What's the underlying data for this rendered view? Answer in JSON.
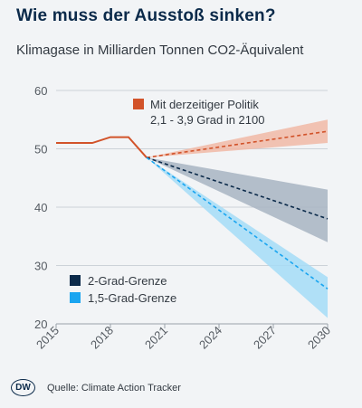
{
  "header": {
    "title": "Wie muss der Ausstoß sinken?",
    "subtitle": "Klimagase in Milliarden Tonnen CO2-Äquivalent"
  },
  "footer": {
    "logo_text": "DW",
    "source": "Quelle: Climate Action Tracker"
  },
  "chart_data": {
    "type": "line",
    "xlim": [
      2015,
      2030
    ],
    "ylim": [
      20,
      60
    ],
    "x_ticks": [
      "2015",
      "2018",
      "2021",
      "2024",
      "2027",
      "2030"
    ],
    "y_ticks": [
      "20",
      "30",
      "40",
      "50",
      "60"
    ],
    "grid": true,
    "colors": {
      "policy": "#d2532a",
      "policy_band": "#f1b9a6",
      "two": "#0b2a4a",
      "two_band": "#a8b4c2",
      "onefive": "#1aa5f0",
      "onefive_band": "#a5dcf7"
    },
    "history": {
      "x": [
        2015,
        2017,
        2018,
        2019,
        2020
      ],
      "y": [
        51,
        51,
        52,
        52,
        48.5
      ]
    },
    "scenarios": [
      {
        "key": "policy",
        "name": "Mit derzeitiger Politik",
        "note": "2,1 - 3,9 Grad in 2100",
        "x": [
          2020,
          2030
        ],
        "y": [
          48.5,
          53
        ],
        "low": [
          48.5,
          51
        ],
        "high": [
          48.5,
          55
        ]
      },
      {
        "key": "two",
        "name": "2-Grad-Grenze",
        "x": [
          2020,
          2030
        ],
        "y": [
          48.5,
          38
        ],
        "low": [
          48.5,
          34
        ],
        "high": [
          48.5,
          43
        ]
      },
      {
        "key": "onefive",
        "name": "1,5-Grad-Grenze",
        "x": [
          2020,
          2030
        ],
        "y": [
          48.5,
          26
        ],
        "low": [
          48.5,
          21
        ],
        "high": [
          48.5,
          28
        ]
      }
    ],
    "legend": [
      {
        "key": "policy",
        "label": "Mit derzeitiger Politik",
        "sublabel": "2,1 - 3,9 Grad in 2100"
      },
      {
        "key": "two",
        "label": "2-Grad-Grenze"
      },
      {
        "key": "onefive",
        "label": "1,5-Grad-Grenze"
      }
    ]
  }
}
